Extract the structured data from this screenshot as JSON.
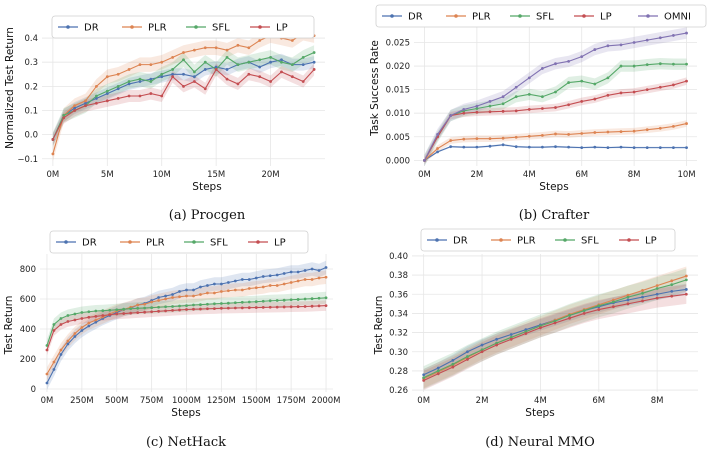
{
  "colors": {
    "DR": "#4c72b0",
    "PLR": "#dd8452",
    "SFL": "#55a868",
    "LP": "#c44e52",
    "OMNI": "#8172b2"
  },
  "chart_data": [
    {
      "type": "line",
      "caption": "(a) Procgen",
      "xlabel": "Steps",
      "ylabel": "Normalized Test Return",
      "xlim": [
        -1,
        25
      ],
      "ylim": [
        -0.13,
        0.45
      ],
      "xticks": [
        {
          "v": 0,
          "label": "0M"
        },
        {
          "v": 5,
          "label": "5M"
        },
        {
          "v": 10,
          "label": "10M"
        },
        {
          "v": 15,
          "label": "15M"
        },
        {
          "v": 20,
          "label": "20M"
        }
      ],
      "yticks": [
        {
          "v": -0.1,
          "label": "−0.1"
        },
        {
          "v": 0.0,
          "label": "0.0"
        },
        {
          "v": 0.1,
          "label": "0.1"
        },
        {
          "v": 0.2,
          "label": "0.2"
        },
        {
          "v": 0.3,
          "label": "0.3"
        },
        {
          "v": 0.4,
          "label": "0.4"
        }
      ],
      "x": [
        0,
        1,
        2,
        3,
        4,
        5,
        6,
        7,
        8,
        9,
        10,
        11,
        12,
        13,
        14,
        15,
        16,
        17,
        18,
        19,
        20,
        21,
        22,
        23,
        24
      ],
      "series": [
        {
          "name": "DR",
          "band": 0.025,
          "values": [
            -0.02,
            0.08,
            0.11,
            0.13,
            0.15,
            0.17,
            0.19,
            0.21,
            0.22,
            0.23,
            0.24,
            0.25,
            0.25,
            0.24,
            0.27,
            0.28,
            0.27,
            0.29,
            0.3,
            0.28,
            0.3,
            0.31,
            0.29,
            0.29,
            0.3
          ]
        },
        {
          "name": "PLR",
          "band": 0.03,
          "values": [
            -0.08,
            0.08,
            0.12,
            0.14,
            0.2,
            0.24,
            0.25,
            0.27,
            0.29,
            0.29,
            0.3,
            0.32,
            0.34,
            0.35,
            0.36,
            0.36,
            0.35,
            0.37,
            0.36,
            0.39,
            0.41,
            0.4,
            0.39,
            0.42,
            0.41
          ]
        },
        {
          "name": "SFL",
          "band": 0.03,
          "values": [
            -0.02,
            0.08,
            0.1,
            0.12,
            0.16,
            0.18,
            0.2,
            0.22,
            0.23,
            0.22,
            0.25,
            0.27,
            0.31,
            0.26,
            0.3,
            0.27,
            0.32,
            0.29,
            0.3,
            0.31,
            0.32,
            0.3,
            0.29,
            0.32,
            0.34
          ]
        },
        {
          "name": "LP",
          "band": 0.025,
          "values": [
            -0.02,
            0.07,
            0.1,
            0.12,
            0.13,
            0.14,
            0.15,
            0.16,
            0.16,
            0.17,
            0.16,
            0.24,
            0.2,
            0.22,
            0.19,
            0.27,
            0.23,
            0.21,
            0.25,
            0.24,
            0.22,
            0.26,
            0.24,
            0.22,
            0.27
          ]
        }
      ]
    },
    {
      "type": "line",
      "caption": "(b) Crafter",
      "xlabel": "Steps",
      "ylabel": "Task Success Rate",
      "xlim": [
        -0.4,
        10.4
      ],
      "ylim": [
        -0.0012,
        0.0285
      ],
      "xticks": [
        {
          "v": 0,
          "label": "0M"
        },
        {
          "v": 2,
          "label": "2M"
        },
        {
          "v": 4,
          "label": "4M"
        },
        {
          "v": 6,
          "label": "6M"
        },
        {
          "v": 8,
          "label": "8M"
        },
        {
          "v": 10,
          "label": "10M"
        }
      ],
      "yticks": [
        {
          "v": 0,
          "label": "0.000"
        },
        {
          "v": 0.005,
          "label": "0.005"
        },
        {
          "v": 0.01,
          "label": "0.010"
        },
        {
          "v": 0.015,
          "label": "0.015"
        },
        {
          "v": 0.02,
          "label": "0.020"
        },
        {
          "v": 0.025,
          "label": "0.025"
        }
      ],
      "x": [
        0,
        0.5,
        1,
        1.5,
        2,
        2.5,
        3,
        3.5,
        4,
        4.5,
        5,
        5.5,
        6,
        6.5,
        7,
        7.5,
        8,
        8.5,
        9,
        9.5,
        10
      ],
      "series": [
        {
          "name": "DR",
          "band": 0.0002,
          "values": [
            0.0,
            0.0018,
            0.0029,
            0.0028,
            0.0028,
            0.003,
            0.0033,
            0.0029,
            0.0028,
            0.0028,
            0.0029,
            0.0028,
            0.0027,
            0.0028,
            0.0027,
            0.0028,
            0.0027,
            0.0027,
            0.0027,
            0.0027,
            0.0027
          ]
        },
        {
          "name": "PLR",
          "band": 0.0007,
          "values": [
            0.0,
            0.0025,
            0.0042,
            0.0045,
            0.0046,
            0.0046,
            0.0047,
            0.0049,
            0.0051,
            0.0053,
            0.0056,
            0.0055,
            0.0057,
            0.0059,
            0.006,
            0.0061,
            0.0062,
            0.0065,
            0.0068,
            0.0072,
            0.0078
          ]
        },
        {
          "name": "SFL",
          "band": 0.0012,
          "values": [
            0.0,
            0.005,
            0.0095,
            0.0105,
            0.011,
            0.0115,
            0.012,
            0.0135,
            0.014,
            0.0135,
            0.0145,
            0.0165,
            0.0168,
            0.0162,
            0.0175,
            0.02,
            0.02,
            0.0203,
            0.0205,
            0.0204,
            0.0204
          ]
        },
        {
          "name": "LP",
          "band": 0.0008,
          "values": [
            0.0,
            0.005,
            0.0095,
            0.01,
            0.0102,
            0.0103,
            0.0104,
            0.0105,
            0.0108,
            0.011,
            0.0112,
            0.0118,
            0.0125,
            0.013,
            0.0138,
            0.0143,
            0.0145,
            0.015,
            0.0155,
            0.016,
            0.0168
          ]
        },
        {
          "name": "OMNI",
          "band": 0.0012,
          "values": [
            0.0,
            0.0055,
            0.0095,
            0.0108,
            0.0115,
            0.0125,
            0.0135,
            0.0155,
            0.0175,
            0.0195,
            0.0205,
            0.021,
            0.022,
            0.0235,
            0.0243,
            0.0245,
            0.025,
            0.0255,
            0.026,
            0.0265,
            0.027
          ]
        }
      ]
    },
    {
      "type": "line",
      "caption": "(c) NetHack",
      "xlabel": "Steps",
      "ylabel": "Test Return",
      "xlim": [
        -50,
        2050
      ],
      "ylim": [
        -20,
        900
      ],
      "xticks": [
        {
          "v": 0,
          "label": "0M"
        },
        {
          "v": 250,
          "label": "250M"
        },
        {
          "v": 500,
          "label": "500M"
        },
        {
          "v": 750,
          "label": "750M"
        },
        {
          "v": 1000,
          "label": "1000M"
        },
        {
          "v": 1250,
          "label": "1250M"
        },
        {
          "v": 1500,
          "label": "1500M"
        },
        {
          "v": 1750,
          "label": "1750M"
        },
        {
          "v": 2000,
          "label": "2000M"
        }
      ],
      "yticks": [
        {
          "v": 0,
          "label": "0"
        },
        {
          "v": 200,
          "label": "200"
        },
        {
          "v": 400,
          "label": "400"
        },
        {
          "v": 600,
          "label": "600"
        },
        {
          "v": 800,
          "label": "800"
        }
      ],
      "x": [
        0,
        50,
        100,
        150,
        200,
        250,
        300,
        350,
        400,
        450,
        500,
        550,
        600,
        650,
        700,
        750,
        800,
        850,
        900,
        950,
        1000,
        1050,
        1100,
        1150,
        1200,
        1250,
        1300,
        1350,
        1400,
        1450,
        1500,
        1550,
        1600,
        1650,
        1700,
        1750,
        1800,
        1850,
        1900,
        1950,
        2000
      ],
      "series": [
        {
          "name": "DR",
          "band": 45,
          "values": [
            40,
            130,
            230,
            300,
            350,
            390,
            420,
            445,
            470,
            490,
            510,
            530,
            540,
            560,
            570,
            590,
            610,
            620,
            630,
            650,
            660,
            660,
            680,
            690,
            700,
            700,
            710,
            720,
            730,
            730,
            740,
            750,
            755,
            760,
            770,
            780,
            780,
            790,
            800,
            790,
            810
          ]
        },
        {
          "name": "PLR",
          "band": 45,
          "values": [
            100,
            180,
            260,
            320,
            370,
            410,
            440,
            460,
            480,
            500,
            520,
            530,
            545,
            560,
            565,
            580,
            590,
            600,
            610,
            615,
            620,
            620,
            630,
            640,
            640,
            650,
            655,
            660,
            660,
            670,
            675,
            680,
            690,
            690,
            700,
            710,
            720,
            730,
            730,
            740,
            745
          ]
        },
        {
          "name": "SFL",
          "band": 40,
          "values": [
            290,
            430,
            470,
            490,
            500,
            510,
            515,
            520,
            522,
            525,
            528,
            532,
            535,
            538,
            540,
            542,
            545,
            548,
            550,
            553,
            556,
            560,
            562,
            565,
            568,
            570,
            572,
            575,
            578,
            580,
            582,
            585,
            588,
            590,
            592,
            595,
            597,
            600,
            602,
            605,
            608
          ]
        },
        {
          "name": "LP",
          "band": 35,
          "values": [
            260,
            390,
            430,
            450,
            460,
            470,
            478,
            484,
            490,
            495,
            500,
            503,
            506,
            509,
            512,
            515,
            518,
            521,
            524,
            527,
            530,
            532,
            533,
            535,
            536,
            538,
            539,
            540,
            541,
            542,
            543,
            544,
            545,
            546,
            547,
            548,
            549,
            550,
            552,
            554,
            556
          ]
        }
      ]
    },
    {
      "type": "line",
      "caption": "(d) Neural MMO",
      "xlabel": "Steps",
      "ylabel": "Test Return",
      "xlim": [
        -0.4,
        9.4
      ],
      "ylim": [
        0.258,
        0.402
      ],
      "xticks": [
        {
          "v": 0,
          "label": "0M"
        },
        {
          "v": 2,
          "label": "2M"
        },
        {
          "v": 4,
          "label": "4M"
        },
        {
          "v": 6,
          "label": "6M"
        },
        {
          "v": 8,
          "label": "8M"
        }
      ],
      "yticks": [
        {
          "v": 0.26,
          "label": "0.26"
        },
        {
          "v": 0.28,
          "label": "0.28"
        },
        {
          "v": 0.3,
          "label": "0.30"
        },
        {
          "v": 0.32,
          "label": "0.32"
        },
        {
          "v": 0.34,
          "label": "0.34"
        },
        {
          "v": 0.36,
          "label": "0.36"
        },
        {
          "v": 0.38,
          "label": "0.38"
        },
        {
          "v": 0.4,
          "label": "0.40"
        }
      ],
      "x": [
        0,
        0.5,
        1,
        1.5,
        2,
        2.5,
        3,
        3.5,
        4,
        4.5,
        5,
        5.5,
        6,
        6.5,
        7,
        7.5,
        8,
        8.5,
        9
      ],
      "series": [
        {
          "name": "DR",
          "band": 0.006,
          "values": [
            0.276,
            0.283,
            0.291,
            0.3,
            0.307,
            0.313,
            0.318,
            0.323,
            0.328,
            0.333,
            0.338,
            0.343,
            0.347,
            0.351,
            0.354,
            0.357,
            0.36,
            0.363,
            0.365
          ]
        },
        {
          "name": "PLR",
          "band": 0.01,
          "values": [
            0.272,
            0.279,
            0.286,
            0.294,
            0.302,
            0.309,
            0.315,
            0.321,
            0.327,
            0.333,
            0.339,
            0.344,
            0.349,
            0.354,
            0.359,
            0.364,
            0.369,
            0.374,
            0.379
          ]
        },
        {
          "name": "SFL",
          "band": 0.012,
          "values": [
            0.273,
            0.28,
            0.287,
            0.295,
            0.302,
            0.309,
            0.315,
            0.321,
            0.327,
            0.332,
            0.338,
            0.343,
            0.348,
            0.352,
            0.357,
            0.361,
            0.366,
            0.37,
            0.375
          ]
        },
        {
          "name": "LP",
          "band": 0.01,
          "values": [
            0.27,
            0.277,
            0.284,
            0.292,
            0.3,
            0.307,
            0.313,
            0.319,
            0.325,
            0.33,
            0.335,
            0.34,
            0.344,
            0.347,
            0.35,
            0.353,
            0.356,
            0.358,
            0.36
          ]
        }
      ]
    }
  ]
}
